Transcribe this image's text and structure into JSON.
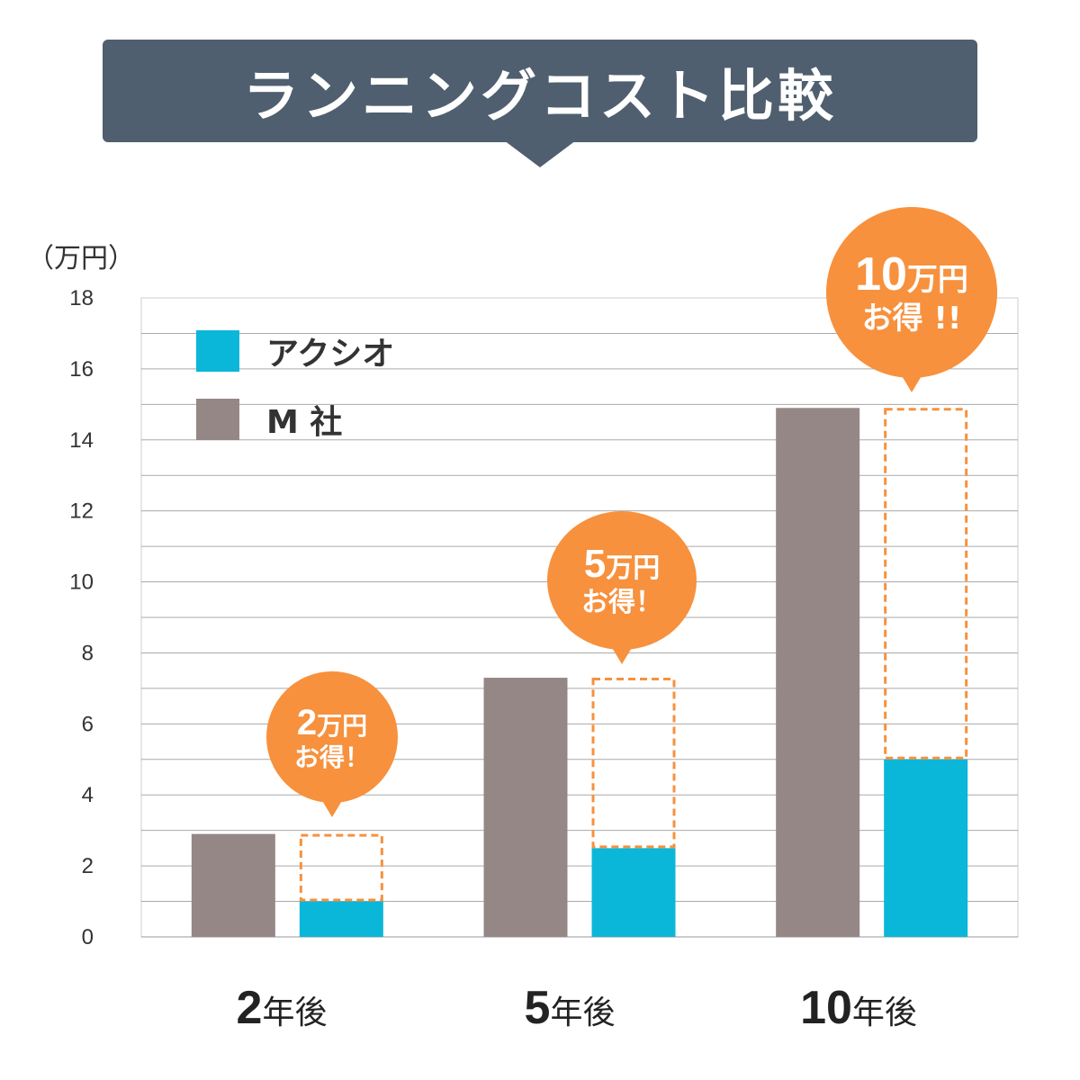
{
  "header": {
    "title": "ランニングコスト比較"
  },
  "chart_data": {
    "type": "bar",
    "title": "ランニングコスト比較",
    "ylabel": "（万円）",
    "ylim": [
      0,
      18
    ],
    "yticks": [
      "0",
      "2",
      "4",
      "6",
      "8",
      "10",
      "12",
      "14",
      "16",
      "18"
    ],
    "categories": [
      {
        "number": "2",
        "suffix": "年後"
      },
      {
        "number": "5",
        "suffix": "年後"
      },
      {
        "number": "10",
        "suffix": "年後"
      }
    ],
    "series": [
      {
        "name": "M 社",
        "color": "#968787",
        "values": [
          2.9,
          7.3,
          14.9
        ]
      },
      {
        "name": "アクシオ",
        "color": "#0bb7d8",
        "values": [
          1,
          2.5,
          5
        ]
      }
    ],
    "savings": [
      {
        "amount": "2",
        "unit": "万円",
        "text": "お得！"
      },
      {
        "amount": "5",
        "unit": "万円",
        "text": "お得！"
      },
      {
        "amount": "10",
        "unit": "万円",
        "text": "お得 !!"
      }
    ],
    "legend": {
      "position": "top-left"
    },
    "grid": true,
    "colors": {
      "savings_outline": "#f7913d",
      "gridline": "#aaaaaa"
    }
  }
}
